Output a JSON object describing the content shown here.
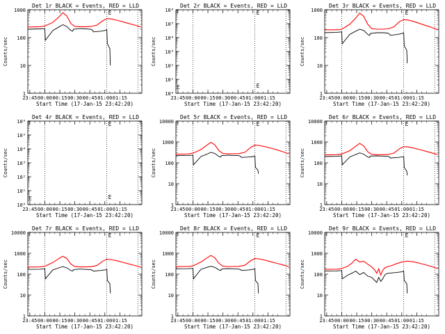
{
  "figure": {
    "x_tick_labels": [
      "23:45",
      "00:00",
      "00:15",
      "00:30",
      "00:45",
      "01:00",
      "01:15"
    ],
    "xlabel": "Start Time (17-Jan-15 23:42:20)",
    "ylabel": "Counts/sec",
    "colors": {
      "events": "#000000",
      "lld": "#ff0000",
      "axes": "#000000",
      "background": "#ffffff"
    }
  },
  "chart_data": [
    {
      "type": "line",
      "title": "Det 1r BLACK = Events, RED = LLD",
      "yscale": "log",
      "ylim": [
        1,
        1000
      ],
      "ytick_labels": [
        "1",
        "10",
        "100",
        "1000"
      ],
      "xlim_minutes": [
        -17,
        97
      ],
      "vlines_minutes": [
        0,
        62,
        93
      ],
      "marker_label": "E",
      "series": [
        {
          "role": "lld",
          "x": [
            -17,
            -5,
            0,
            8,
            14,
            18,
            22,
            26,
            30,
            35,
            40,
            46,
            52,
            58,
            62,
            66,
            72,
            78,
            84,
            90,
            96
          ],
          "y": [
            240,
            245,
            260,
            350,
            550,
            780,
            600,
            320,
            250,
            245,
            245,
            250,
            280,
            400,
            480,
            470,
            420,
            370,
            320,
            280,
            240
          ]
        },
        {
          "role": "events",
          "x": [
            -17,
            -5,
            0,
            0.5,
            8,
            14,
            18,
            22,
            26,
            28,
            28.5,
            35,
            40,
            46,
            48,
            48.5,
            56,
            60,
            62,
            62.5,
            65,
            65.5
          ],
          "y": [
            200,
            205,
            210,
            80,
            180,
            240,
            290,
            250,
            180,
            170,
            200,
            210,
            205,
            200,
            180,
            160,
            170,
            180,
            190,
            60,
            40,
            10
          ]
        }
      ]
    },
    {
      "type": "line",
      "title": "Det 2r BLACK = Events, RED = LLD",
      "yscale": "log",
      "ylim": [
        1,
        1000000
      ],
      "ytick_labels": [
        "10⁰",
        "10¹",
        "10²",
        "10³",
        "10⁴",
        "10⁵",
        "10⁶"
      ],
      "xlim_minutes": [
        -17,
        97
      ],
      "vlines_minutes": [
        0,
        62,
        93
      ],
      "marker_label": "E",
      "series": []
    },
    {
      "type": "line",
      "title": "Det 3r BLACK = Events, RED = LLD",
      "yscale": "log",
      "ylim": [
        1,
        1000
      ],
      "ytick_labels": [
        "1",
        "10",
        "100",
        "1000"
      ],
      "xlim_minutes": [
        -17,
        97
      ],
      "vlines_minutes": [
        0,
        62,
        93
      ],
      "marker_label": "E",
      "series": [
        {
          "role": "lld",
          "x": [
            -17,
            -5,
            0,
            8,
            14,
            18,
            22,
            26,
            30,
            35,
            40,
            46,
            52,
            58,
            62,
            66,
            72,
            78,
            84,
            90,
            96
          ],
          "y": [
            190,
            190,
            200,
            300,
            500,
            760,
            580,
            300,
            210,
            200,
            200,
            205,
            240,
            380,
            440,
            430,
            380,
            320,
            270,
            230,
            190
          ]
        },
        {
          "role": "events",
          "x": [
            -17,
            -5,
            0,
            0.5,
            8,
            14,
            18,
            22,
            26,
            28,
            28.5,
            35,
            40,
            46,
            48,
            48.5,
            56,
            60,
            62,
            62.5,
            65,
            65.5
          ],
          "y": [
            150,
            155,
            160,
            60,
            130,
            170,
            200,
            180,
            130,
            120,
            140,
            150,
            150,
            145,
            130,
            120,
            130,
            140,
            150,
            50,
            35,
            12
          ]
        }
      ]
    },
    {
      "type": "line",
      "title": "Det 4r BLACK = Events, RED = LLD",
      "yscale": "log",
      "ylim": [
        1,
        1000000
      ],
      "ytick_labels": [
        "10⁰",
        "10¹",
        "10²",
        "10³",
        "10⁴",
        "10⁵",
        "10⁶"
      ],
      "xlim_minutes": [
        -17,
        97
      ],
      "vlines_minutes": [
        0,
        62,
        93
      ],
      "marker_label": "E",
      "series": []
    },
    {
      "type": "line",
      "title": "Det 5r BLACK = Events, RED = LLD",
      "yscale": "log",
      "ylim": [
        1,
        10000
      ],
      "ytick_labels": [
        "1",
        "10",
        "100",
        "1000",
        "10000"
      ],
      "xlim_minutes": [
        -17,
        97
      ],
      "vlines_minutes": [
        0,
        62,
        93
      ],
      "marker_label": "E",
      "series": [
        {
          "role": "lld",
          "x": [
            -17,
            -5,
            0,
            8,
            14,
            18,
            22,
            26,
            30,
            35,
            40,
            46,
            52,
            58,
            62,
            66,
            72,
            78,
            84,
            90,
            96
          ],
          "y": [
            260,
            265,
            290,
            430,
            700,
            960,
            720,
            380,
            280,
            270,
            270,
            275,
            320,
            560,
            700,
            680,
            600,
            500,
            420,
            340,
            270
          ]
        },
        {
          "role": "events",
          "x": [
            -17,
            -5,
            0,
            0.5,
            8,
            14,
            18,
            22,
            26,
            28,
            28.5,
            35,
            40,
            46,
            48,
            48.5,
            56,
            60,
            62,
            62.5,
            65,
            65.5
          ],
          "y": [
            220,
            225,
            230,
            80,
            200,
            260,
            320,
            280,
            200,
            190,
            220,
            230,
            225,
            220,
            200,
            180,
            190,
            200,
            210,
            60,
            45,
            30
          ]
        }
      ]
    },
    {
      "type": "line",
      "title": "Det 6r BLACK = Events, RED = LLD",
      "yscale": "log",
      "ylim": [
        1,
        10000
      ],
      "ytick_labels": [
        "1",
        "10",
        "100",
        "1000",
        "10000"
      ],
      "xlim_minutes": [
        -17,
        97
      ],
      "vlines_minutes": [
        0,
        62,
        93
      ],
      "marker_label": "E",
      "series": [
        {
          "role": "lld",
          "x": [
            -17,
            -5,
            0,
            8,
            14,
            18,
            22,
            26,
            30,
            35,
            40,
            46,
            52,
            58,
            62,
            66,
            72,
            78,
            84,
            90,
            96
          ],
          "y": [
            240,
            245,
            265,
            380,
            620,
            860,
            640,
            340,
            255,
            245,
            245,
            250,
            290,
            480,
            600,
            580,
            510,
            430,
            360,
            300,
            250
          ]
        },
        {
          "role": "events",
          "x": [
            -17,
            -5,
            0,
            0.5,
            8,
            14,
            18,
            22,
            26,
            28,
            28.5,
            35,
            40,
            46,
            48,
            48.5,
            56,
            60,
            62,
            62.5,
            65,
            65.5
          ],
          "y": [
            200,
            205,
            215,
            80,
            190,
            250,
            300,
            260,
            190,
            180,
            210,
            215,
            210,
            205,
            190,
            170,
            180,
            190,
            200,
            60,
            40,
            25
          ]
        }
      ]
    },
    {
      "type": "line",
      "title": "Det 7r BLACK = Events, RED = LLD",
      "yscale": "log",
      "ylim": [
        1,
        10000
      ],
      "ytick_labels": [
        "1",
        "10",
        "100",
        "1000",
        "10000"
      ],
      "xlim_minutes": [
        -17,
        97
      ],
      "vlines_minutes": [
        0,
        62,
        93
      ],
      "marker_label": "E",
      "series": [
        {
          "role": "lld",
          "x": [
            -17,
            -5,
            0,
            8,
            14,
            18,
            22,
            26,
            30,
            35,
            40,
            46,
            52,
            58,
            62,
            66,
            72,
            78,
            84,
            90,
            96
          ],
          "y": [
            220,
            222,
            240,
            360,
            560,
            720,
            560,
            310,
            230,
            222,
            222,
            225,
            260,
            420,
            520,
            500,
            440,
            370,
            310,
            260,
            220
          ]
        },
        {
          "role": "events",
          "x": [
            -17,
            -5,
            0,
            0.5,
            8,
            14,
            18,
            22,
            26,
            28,
            28.5,
            35,
            40,
            46,
            48,
            48.5,
            56,
            60,
            62,
            62.5,
            65,
            65.5
          ],
          "y": [
            170,
            172,
            180,
            60,
            160,
            200,
            230,
            200,
            150,
            140,
            165,
            175,
            170,
            165,
            150,
            140,
            150,
            160,
            170,
            50,
            35,
            12
          ]
        }
      ]
    },
    {
      "type": "line",
      "title": "Det 8r BLACK = Events, RED = LLD",
      "yscale": "log",
      "ylim": [
        1,
        10000
      ],
      "ytick_labels": [
        "1",
        "10",
        "100",
        "1000",
        "10000"
      ],
      "xlim_minutes": [
        -17,
        97
      ],
      "vlines_minutes": [
        0,
        62,
        93
      ],
      "marker_label": "E",
      "series": [
        {
          "role": "lld",
          "x": [
            -17,
            -5,
            0,
            8,
            14,
            18,
            22,
            26,
            30,
            35,
            40,
            46,
            52,
            58,
            62,
            66,
            72,
            78,
            84,
            90,
            96
          ],
          "y": [
            230,
            232,
            250,
            380,
            600,
            780,
            600,
            330,
            240,
            232,
            232,
            236,
            270,
            450,
            560,
            540,
            470,
            390,
            330,
            275,
            230
          ]
        },
        {
          "role": "events",
          "x": [
            -17,
            -5,
            0,
            0.5,
            8,
            14,
            18,
            22,
            26,
            28,
            28.5,
            35,
            40,
            46,
            48,
            48.5,
            56,
            60,
            62,
            62.5,
            65,
            65.5
          ],
          "y": [
            180,
            182,
            190,
            60,
            170,
            210,
            240,
            210,
            160,
            150,
            175,
            185,
            180,
            175,
            160,
            150,
            160,
            170,
            180,
            50,
            35,
            12
          ]
        }
      ]
    },
    {
      "type": "line",
      "title": "Det 9r BLACK = Events, RED = LLD",
      "yscale": "log",
      "ylim": [
        1,
        10000
      ],
      "ytick_labels": [
        "1",
        "10",
        "100",
        "1000",
        "10000"
      ],
      "xlim_minutes": [
        -17,
        97
      ],
      "vlines_minutes": [
        0,
        62,
        93
      ],
      "marker_label": "E",
      "series": [
        {
          "role": "lld",
          "x": [
            -17,
            -5,
            0,
            6,
            10,
            14,
            18,
            22,
            26,
            30,
            33,
            35,
            37,
            39,
            41,
            43,
            46,
            50,
            55,
            60,
            66,
            72,
            78,
            84,
            90,
            96
          ],
          "y": [
            170,
            172,
            185,
            240,
            330,
            520,
            380,
            420,
            300,
            220,
            160,
            110,
            180,
            90,
            150,
            200,
            230,
            260,
            320,
            380,
            420,
            390,
            330,
            280,
            230,
            185
          ]
        },
        {
          "role": "events",
          "x": [
            -17,
            -5,
            0,
            0.5,
            6,
            10,
            14,
            18,
            22,
            26,
            30,
            33,
            35,
            37,
            39,
            41,
            43,
            44,
            46,
            50,
            55,
            60,
            62,
            62.5,
            65,
            65.5
          ],
          "y": [
            140,
            142,
            150,
            60,
            90,
            110,
            140,
            95,
            120,
            80,
            70,
            50,
            40,
            70,
            45,
            60,
            90,
            100,
            110,
            115,
            120,
            130,
            140,
            50,
            35,
            12
          ]
        }
      ]
    }
  ]
}
